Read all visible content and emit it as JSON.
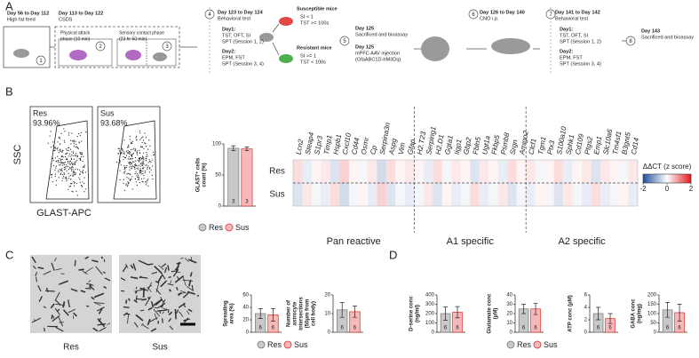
{
  "panel_a": {
    "letter": "A",
    "step_numbers": [
      "1",
      "2",
      "3",
      "4",
      "5",
      "6",
      "7",
      "8"
    ],
    "texts": [
      [
        "Day 56 to Day 112",
        "High fat feed"
      ],
      [
        "Day 113 to Day 122",
        "CSDS"
      ],
      [
        "Physical attack",
        "phase (10 min)"
      ],
      [
        "Sensory contact phase",
        "(23 hr 50 min)"
      ],
      [
        "Day 123 to Day 124",
        "Behavioral test"
      ],
      [
        "Day1:",
        "TST, OFT, SI",
        "SPT (Session 1, 2)"
      ],
      [
        "Day2:",
        "EPM, FST",
        "SPT (Session 3, 4)"
      ],
      [
        "Susceptible mice"
      ],
      [
        "SI < 1",
        "TST >= 100s"
      ],
      [
        "Resistant mice"
      ],
      [
        "SI >= 1",
        "TST < 100s"
      ],
      [
        "Day 125",
        "Sacrificed and bioassay"
      ],
      [
        "Day 125",
        "mPFC AAV injection",
        "(GfaABC1D-hM3Dq)"
      ],
      [
        "Day 126 to Day 140",
        "CNO i.p."
      ],
      [
        "Day 141 to Day 142",
        "Behavioral test"
      ],
      [
        "Day1:",
        "TST, OFT, SI",
        "SPT (Session 1, 2)"
      ],
      [
        "Day2:",
        "EPM, FST",
        "SPT (Session 3, 4)"
      ],
      [
        "Day 143",
        "Sacrificed and bioassay"
      ]
    ]
  },
  "panel_b": {
    "letter": "B",
    "flow": [
      {
        "group": "Res",
        "percent": "93.96%"
      },
      {
        "group": "Sus",
        "percent": "93.68%"
      }
    ],
    "y_axis": "SSC",
    "x_axis": "GLAST-APC",
    "legend": [
      "Res",
      "Sus"
    ],
    "chart": {
      "type": "bar",
      "y_title": [
        "GLAST⁺ cells",
        "count (%)"
      ],
      "values": [
        93,
        92
      ],
      "errors": [
        4,
        3
      ],
      "n_labels": [
        "3",
        "3"
      ],
      "colors": [
        "#c8c8c8",
        "#f6b8b8"
      ],
      "edge": [
        "#777777",
        "#d9302c"
      ],
      "ylim": [
        0,
        100
      ],
      "yticks": [
        0,
        50,
        100
      ]
    },
    "heatmap": {
      "type": "heatmap",
      "rows": [
        "Res",
        "Sus"
      ],
      "genes": [
        "Lcn2",
        "Steap4",
        "S1pr3",
        "Timp1",
        "Hspb1",
        "Cxcl10",
        "Cd44",
        "Osmr",
        "Cp",
        "Serpina3n",
        "Aspg",
        "Vim",
        "Gfap",
        "H2.T23",
        "Serping1",
        "H2.D1",
        "Ggta1",
        "Iigp1",
        "Gbp2",
        "Fbln5",
        "Ugt1a",
        "Fkbp5",
        "Psmb8",
        "Srgn",
        "Amigo2",
        "Clcf1",
        "Tgm1",
        "Ptx3",
        "S100a10",
        "Sphk1",
        "Cd109",
        "Ptgs2",
        "Emp1",
        "Slc10a6",
        "Tm4sf1",
        "B3gnt5",
        "Cd14"
      ],
      "groups": [
        {
          "label": "Pan reactive",
          "count": 13
        },
        {
          "label": "A1 specific",
          "count": 12
        },
        {
          "label": "A2 specific",
          "count": 12
        }
      ],
      "values": [
        [
          0.3,
          -0.2,
          0.1,
          0.2,
          -0.3,
          0.4,
          0.1,
          -0.1,
          0.2,
          -0.4,
          0.3,
          0.1,
          0.2,
          0.1,
          -0.2,
          0.3,
          -0.1,
          0.2,
          0.1,
          -0.3,
          0.2,
          0.1,
          -0.2,
          0.3,
          0.1,
          0.2,
          -0.1,
          0.1,
          0.3,
          -0.2,
          0.1,
          0.2,
          -0.3,
          0.2,
          0.1,
          -0.1,
          0.2
        ],
        [
          -0.3,
          0.2,
          -0.1,
          -0.2,
          0.3,
          -0.4,
          -0.1,
          0.1,
          -0.2,
          0.4,
          -0.3,
          -0.1,
          -0.2,
          -0.1,
          0.2,
          -0.3,
          0.1,
          -0.2,
          -0.1,
          0.3,
          -0.2,
          -0.1,
          0.2,
          -0.3,
          -0.1,
          -0.2,
          0.1,
          -0.1,
          -0.3,
          0.2,
          -0.1,
          -0.2,
          0.3,
          -0.2,
          -0.1,
          0.1,
          -0.2
        ]
      ],
      "colormap": [
        "#1f4e9c",
        "#ffffff",
        "#e31a1c"
      ],
      "clim": [
        -2,
        2
      ],
      "colorbar_title": "ΔΔCT (z score)",
      "colorbar_ticks": [
        -2,
        0,
        2
      ]
    }
  },
  "panel_c": {
    "letter": "C",
    "image_labels": [
      "Res",
      "Sus"
    ],
    "legend": [
      "Res",
      "Sus"
    ],
    "charts": [
      {
        "type": "bar",
        "y_title": [
          "Spreading",
          "area (%)"
        ],
        "values": [
          30,
          28
        ],
        "errors": [
          8,
          10
        ],
        "n_labels": [
          "6",
          "6"
        ],
        "colors": [
          "#c8c8c8",
          "#f6b8b8"
        ],
        "edge": [
          "#777777",
          "#d9302c"
        ],
        "ylim": [
          0,
          60
        ],
        "yticks": [
          0,
          20,
          40,
          60
        ]
      },
      {
        "type": "bar",
        "y_title": [
          "Number of",
          "astrocyte",
          "intersections",
          "(50μm from",
          "cell body)"
        ],
        "values": [
          12,
          11
        ],
        "errors": [
          4,
          3
        ],
        "n_labels": [
          "6",
          "6"
        ],
        "colors": [
          "#c8c8c8",
          "#f6b8b8"
        ],
        "edge": [
          "#777777",
          "#d9302c"
        ],
        "ylim": [
          0,
          20
        ],
        "yticks": [
          0,
          10,
          20
        ]
      }
    ]
  },
  "panel_d": {
    "letter": "D",
    "legend": [
      "Res",
      "Sus"
    ],
    "charts": [
      {
        "type": "bar",
        "y_title": [
          "D-serine conc",
          "(ng/ml)"
        ],
        "values": [
          200,
          215
        ],
        "errors": [
          70,
          60
        ],
        "n_labels": [
          "6",
          "6"
        ],
        "colors": [
          "#c8c8c8",
          "#f6b8b8"
        ],
        "edge": [
          "#777777",
          "#d9302c"
        ],
        "ylim": [
          0,
          400
        ],
        "yticks": [
          0,
          100,
          200,
          300,
          400
        ]
      },
      {
        "type": "bar",
        "y_title": [
          "Glutamate conc",
          "(μM)"
        ],
        "values": [
          25,
          25
        ],
        "errors": [
          5,
          6
        ],
        "n_labels": [
          "6",
          "6"
        ],
        "colors": [
          "#c8c8c8",
          "#f6b8b8"
        ],
        "edge": [
          "#777777",
          "#d9302c"
        ],
        "ylim": [
          0,
          40
        ],
        "yticks": [
          0,
          10,
          20,
          30,
          40
        ]
      },
      {
        "type": "bar",
        "y_title": [
          "ATP conc (μM)"
        ],
        "values": [
          3,
          2.2
        ],
        "errors": [
          1,
          0.8
        ],
        "n_labels": [
          "6",
          "6"
        ],
        "colors": [
          "#c8c8c8",
          "#f6b8b8"
        ],
        "edge": [
          "#777777",
          "#d9302c"
        ],
        "ylim": [
          0,
          6
        ],
        "yticks": [
          0,
          2,
          4,
          6
        ]
      },
      {
        "type": "bar",
        "y_title": [
          "GABA conc",
          "(ng/mg)"
        ],
        "values": [
          120,
          105
        ],
        "errors": [
          40,
          45
        ],
        "n_labels": [
          "6",
          "6"
        ],
        "colors": [
          "#c8c8c8",
          "#f6b8b8"
        ],
        "edge": [
          "#777777",
          "#d9302c"
        ],
        "ylim": [
          0,
          200
        ],
        "yticks": [
          0,
          50,
          100,
          150,
          200
        ]
      }
    ]
  }
}
